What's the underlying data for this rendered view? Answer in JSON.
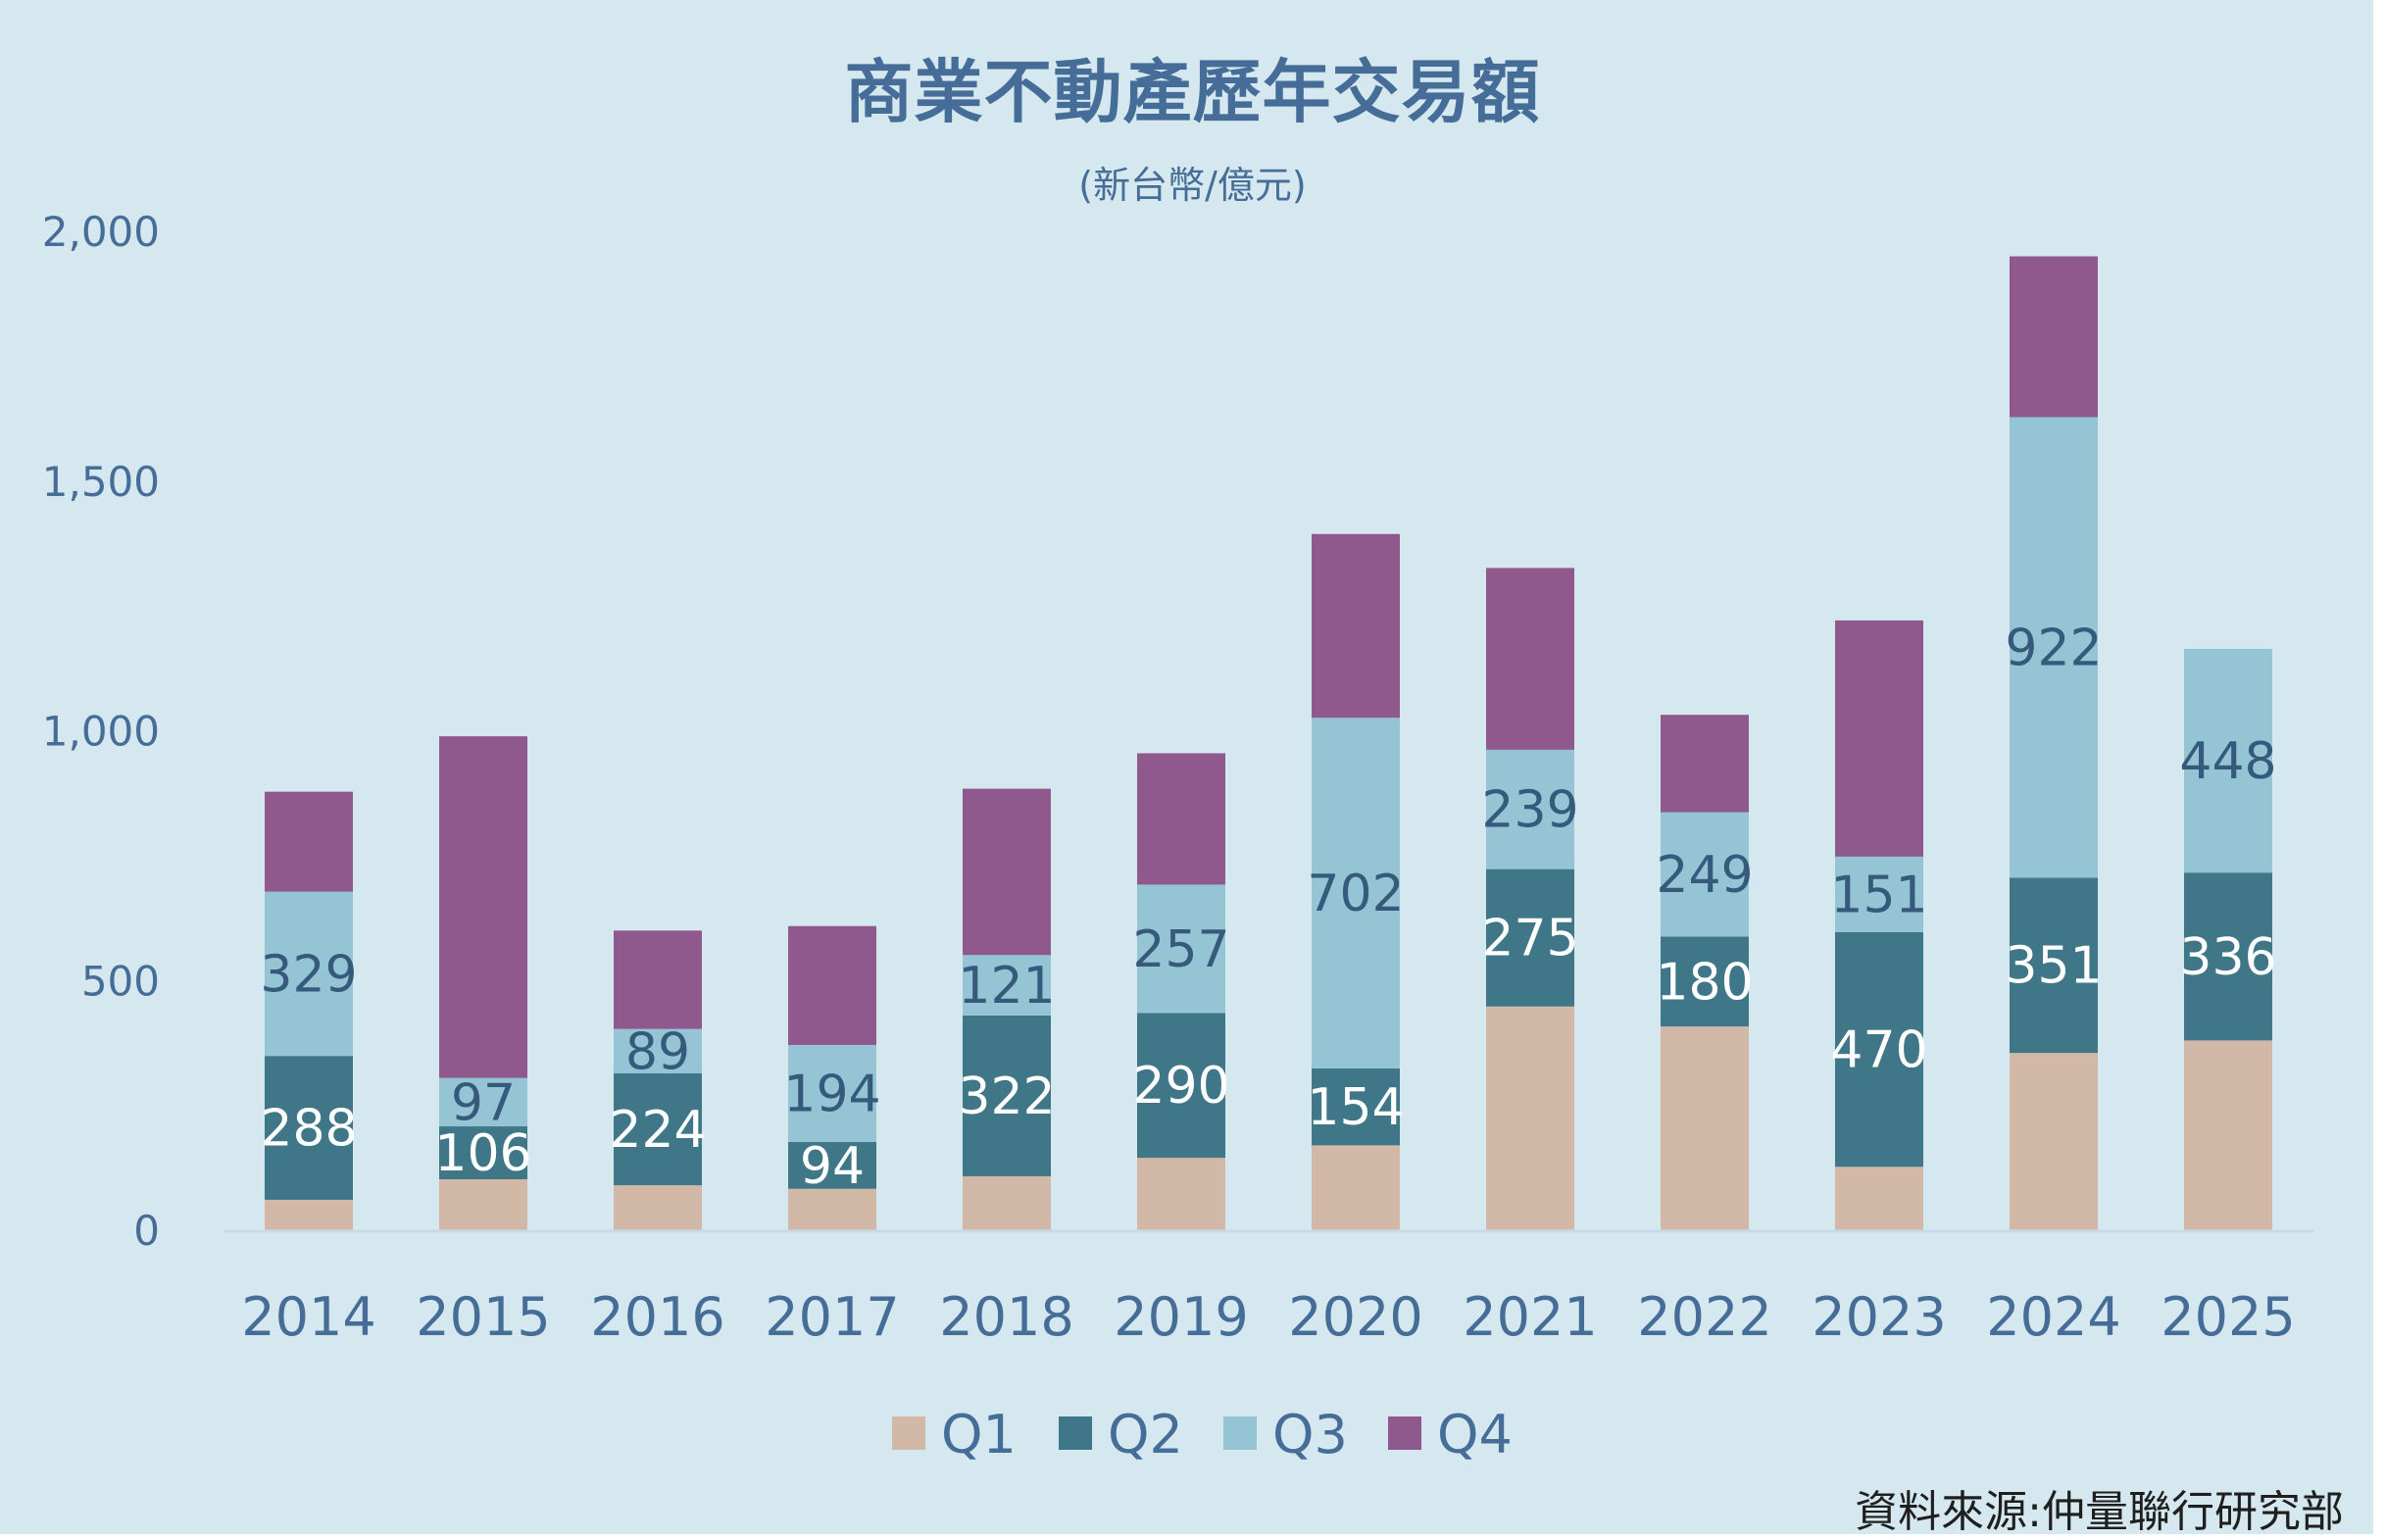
{
  "chart_data": {
    "type": "bar",
    "stacked": true,
    "title": "商業不動產歷年交易額",
    "subtitle": "(新台幣/億元)",
    "xlabel": "",
    "ylabel": "",
    "ylim": [
      0,
      2000
    ],
    "yticks": [
      0,
      500,
      1000,
      1500,
      2000
    ],
    "ytick_labels": [
      "0",
      "500",
      "1,000",
      "1,500",
      "2,000"
    ],
    "grid": false,
    "legend_position": "bottom",
    "categories": [
      "2014",
      "2015",
      "2016",
      "2017",
      "2018",
      "2019",
      "2020",
      "2021",
      "2022",
      "2023",
      "2024",
      "2025"
    ],
    "series": [
      {
        "name": "Q1",
        "color": "#d2b8a6",
        "label_color": "#ffffff",
        "show_labels": false,
        "values": [
          61,
          102,
          90,
          83,
          108,
          145,
          170,
          448,
          408,
          127,
          355,
          380
        ]
      },
      {
        "name": "Q2",
        "color": "#3f7789",
        "label_color": "#ffffff",
        "show_labels": true,
        "values": [
          288,
          106,
          224,
          94,
          322,
          290,
          154,
          275,
          180,
          470,
          351,
          336
        ]
      },
      {
        "name": "Q3",
        "color": "#95c5d5",
        "label_color": "#355a7c",
        "show_labels": true,
        "values": [
          329,
          97,
          89,
          194,
          121,
          257,
          702,
          239,
          249,
          151,
          922,
          448
        ]
      },
      {
        "name": "Q4",
        "color": "#90598e",
        "label_color": "#ffffff",
        "show_labels": false,
        "values": [
          200,
          684,
          197,
          238,
          333,
          263,
          368,
          364,
          195,
          473,
          322,
          null
        ]
      }
    ],
    "source": "資料來源:仲量聯行研究部"
  },
  "colors": {
    "background": "#d5e8ef",
    "text": "#466d97",
    "axis_line": "#c9dbe8"
  }
}
